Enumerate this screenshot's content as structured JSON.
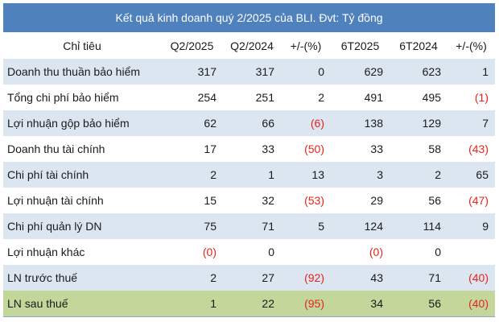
{
  "title": "Kết quả kinh doanh quý 2/2025 của BLI. Đvt: Tỷ đồng",
  "headers": [
    "Chỉ tiêu",
    "Q2/2025",
    "Q2/2024",
    "+/-(%)",
    "6T2025",
    "6T2024",
    "+/-(%)"
  ],
  "rows": [
    {
      "label": "Doanh thu thuần bảo hiểm",
      "cells": [
        "317",
        "317",
        "0",
        "629",
        "623",
        "1"
      ]
    },
    {
      "label": "Tổng chi phí bảo hiểm",
      "cells": [
        "254",
        "251",
        "2",
        "491",
        "495",
        "(1)"
      ]
    },
    {
      "label": "Lợi nhuận gộp  bảo hiểm",
      "cells": [
        "62",
        "66",
        "(6)",
        "138",
        "129",
        "7"
      ]
    },
    {
      "label": "Doanh thu tài chính",
      "cells": [
        "17",
        "33",
        "(50)",
        "33",
        "58",
        "(43)"
      ]
    },
    {
      "label": "Chi phí tài chính",
      "cells": [
        "2",
        "1",
        "13",
        "3",
        "2",
        "65"
      ]
    },
    {
      "label": "Lợi nhuận tài chính",
      "cells": [
        "15",
        "32",
        "(53)",
        "29",
        "56",
        "(47)"
      ]
    },
    {
      "label": "Chi phí quản lý DN",
      "cells": [
        "75",
        "71",
        "5",
        "124",
        "114",
        "9"
      ]
    },
    {
      "label": "Lợi nhuận khác",
      "cells": [
        "(0)",
        "0",
        "",
        "(0)",
        "0",
        ""
      ]
    },
    {
      "label": "LN trước thuế",
      "cells": [
        "2",
        "27",
        "(92)",
        "43",
        "71",
        "(40)"
      ]
    },
    {
      "label": "LN sau thuế",
      "cells": [
        "1",
        "22",
        "(95)",
        "34",
        "56",
        "(40)"
      ]
    }
  ],
  "colors": {
    "header": "#4f81bd",
    "alt_row": "#dce6f1",
    "total_row": "#c4d79b",
    "negative": "#e8221c"
  }
}
